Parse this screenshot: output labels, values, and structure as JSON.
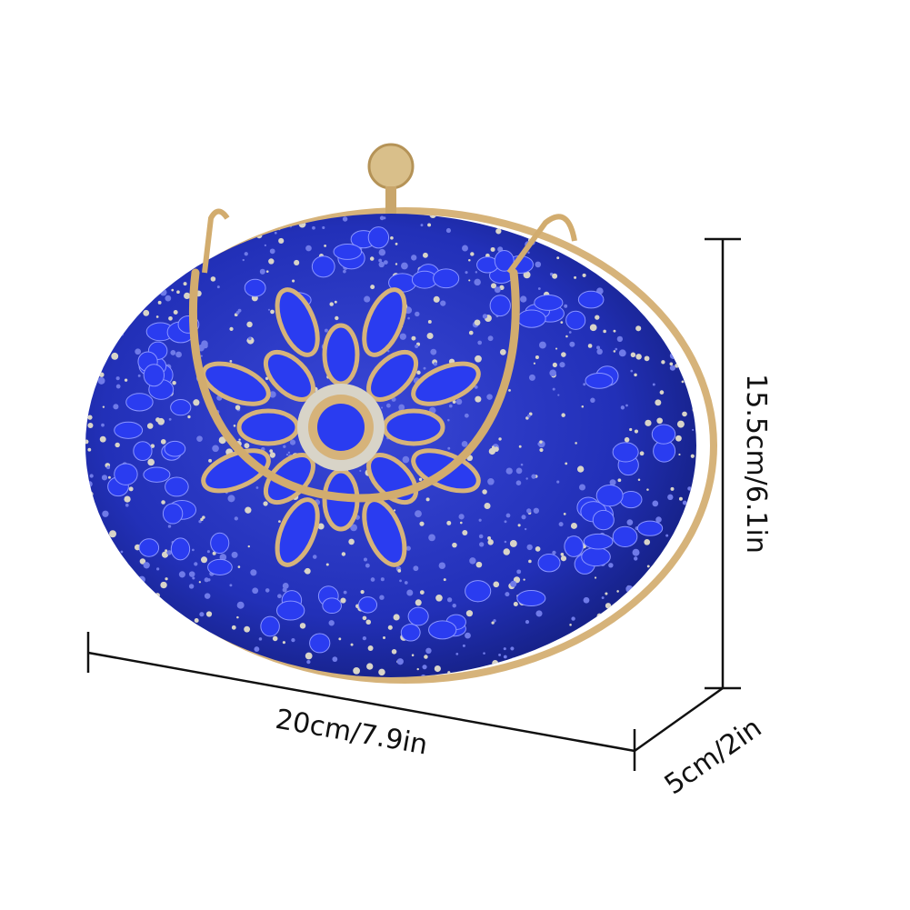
{
  "product": {
    "colors": {
      "body": "#1f2fbf",
      "gem": "#2a3cf0",
      "gold": "#d6b37a",
      "rhinestone": "#d8d4c8"
    }
  },
  "dimensions": {
    "height_label": "15.5cm/6.1in",
    "width_label": "20cm/7.9in",
    "depth_label": "5cm/2in"
  }
}
